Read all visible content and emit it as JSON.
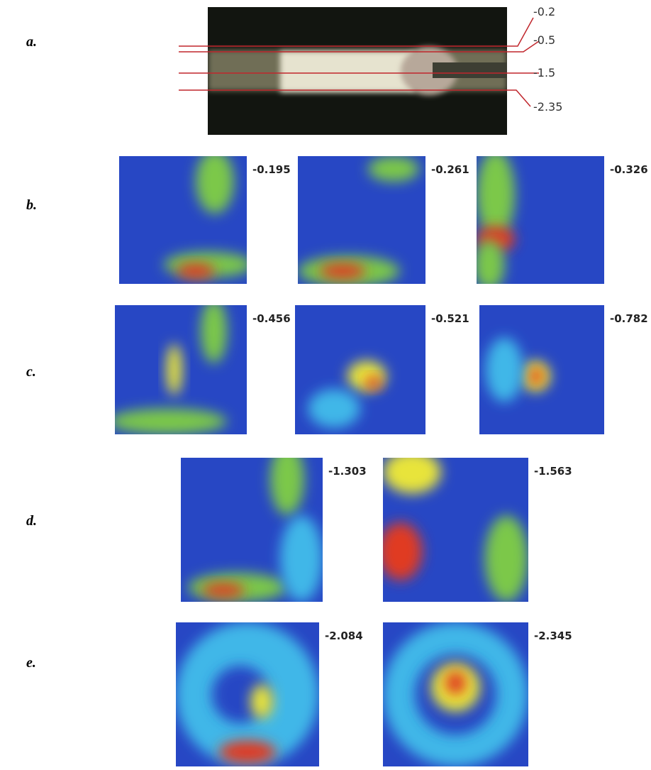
{
  "rows": [
    {
      "label": "a.",
      "lines": [
        "-0.2",
        "-0.5",
        "-1.5",
        "-2.35"
      ]
    },
    {
      "label": "b.",
      "panels": [
        "-0.195",
        "-0.261",
        "-0.326"
      ]
    },
    {
      "label": "c.",
      "panels": [
        "-0.456",
        "-0.521",
        "-0.782"
      ]
    },
    {
      "label": "d.",
      "panels": [
        "-1.303",
        "-1.563"
      ]
    },
    {
      "label": "e.",
      "panels": [
        "-2.084",
        "-2.345"
      ]
    }
  ]
}
